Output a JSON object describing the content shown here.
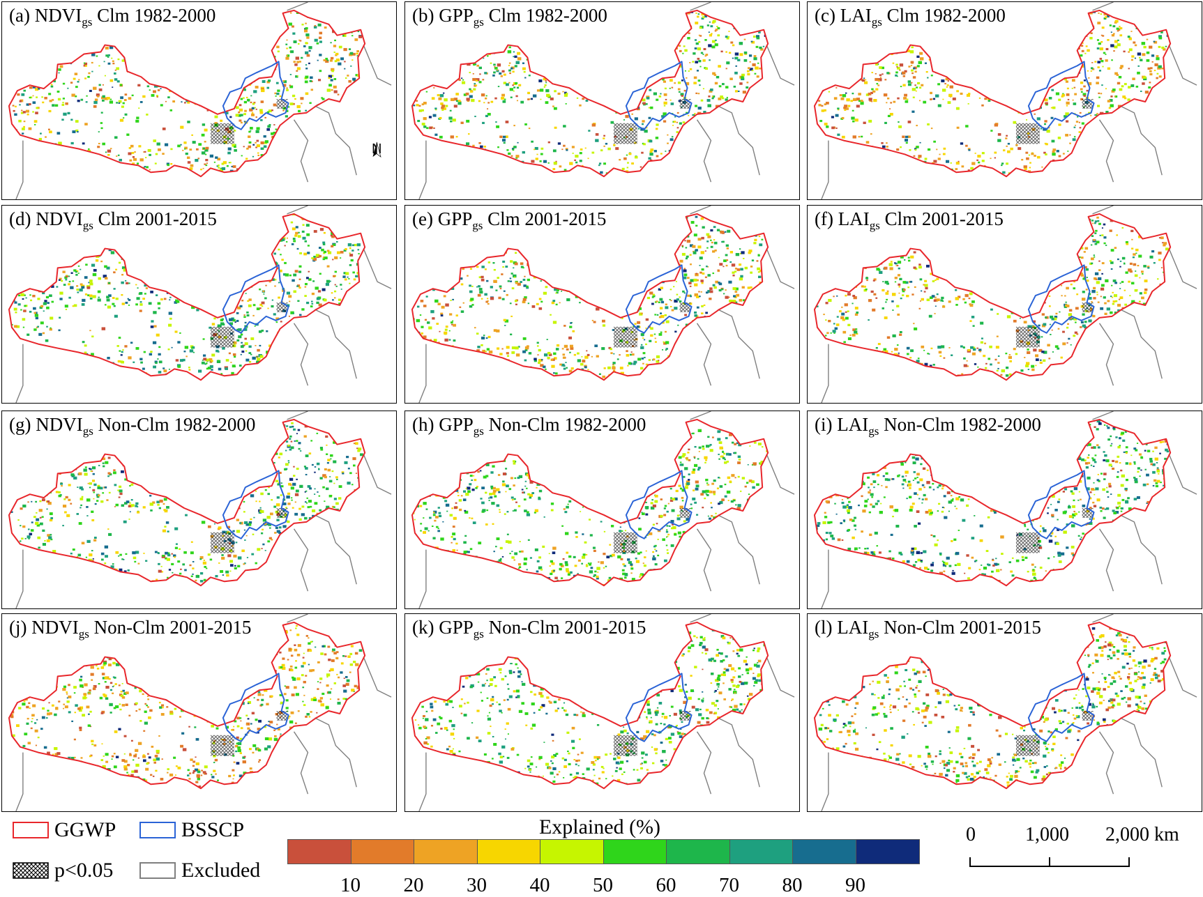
{
  "panels": [
    {
      "id": "a",
      "prefix": "(a) ",
      "var": "NDVI",
      "sub": "gs",
      "rest": " Clm 1982-2000",
      "seed": 1,
      "palette": "mixed",
      "north": true
    },
    {
      "id": "b",
      "prefix": "(b) ",
      "var": "GPP",
      "sub": "gs",
      "rest": " Clm 1982-2000",
      "seed": 2,
      "palette": "mixed"
    },
    {
      "id": "c",
      "prefix": "(c) ",
      "var": "LAI",
      "sub": "gs",
      "rest": " Clm 1982-2000",
      "seed": 3,
      "palette": "warm"
    },
    {
      "id": "d",
      "prefix": "(d) ",
      "var": "NDVI",
      "sub": "gs",
      "rest": " Clm 2001-2015",
      "seed": 4,
      "palette": "cool"
    },
    {
      "id": "e",
      "prefix": "(e) ",
      "var": "GPP",
      "sub": "gs",
      "rest": " Clm 2001-2015",
      "seed": 5,
      "palette": "mixed"
    },
    {
      "id": "f",
      "prefix": "(f) ",
      "var": "LAI",
      "sub": "gs",
      "rest": " Clm 2001-2015",
      "seed": 6,
      "palette": "mixed"
    },
    {
      "id": "g",
      "prefix": "(g) ",
      "var": "NDVI",
      "sub": "gs",
      "rest": " Non-Clm 1982-2000",
      "seed": 7,
      "palette": "cool"
    },
    {
      "id": "h",
      "prefix": "(h) ",
      "var": "GPP",
      "sub": "gs",
      "rest": " Non-Clm 1982-2000",
      "seed": 8,
      "palette": "green"
    },
    {
      "id": "i",
      "prefix": "(i) ",
      "var": "LAI",
      "sub": "gs",
      "rest": " Non-Clm 1982-2000",
      "seed": 9,
      "palette": "cool"
    },
    {
      "id": "j",
      "prefix": "(j) ",
      "var": "NDVI",
      "sub": "gs",
      "rest": " Non-Clm 2001-2015",
      "seed": 10,
      "palette": "warm"
    },
    {
      "id": "k",
      "prefix": "(k) ",
      "var": "GPP",
      "sub": "gs",
      "rest": " Non-Clm 2001-2015",
      "seed": 11,
      "palette": "green"
    },
    {
      "id": "l",
      "prefix": "(l) ",
      "var": "LAI",
      "sub": "gs",
      "rest": " Non-Clm 2001-2015",
      "seed": 12,
      "palette": "mixed"
    }
  ],
  "north_label": "N",
  "legend": {
    "ggwp": "GGWP",
    "bsscp": "BSSCP",
    "sig": "p<0.05",
    "excluded": "Excluded",
    "colors": {
      "ggwp": "#e8262b",
      "bsscp": "#2a63d6",
      "excluded": "#7f7f7f"
    }
  },
  "colorbar": {
    "title": "Explained (%)",
    "ticks": [
      "10",
      "20",
      "30",
      "40",
      "50",
      "60",
      "70",
      "80",
      "90"
    ],
    "colors": [
      "#c9503b",
      "#e27b2a",
      "#eea324",
      "#f7d600",
      "#c6f500",
      "#2fd51b",
      "#1eb64b",
      "#1ea07f",
      "#176d8f",
      "#0f2b7a"
    ]
  },
  "scalebar": {
    "labels": [
      "0",
      "1,000",
      "2,000 km"
    ]
  }
}
